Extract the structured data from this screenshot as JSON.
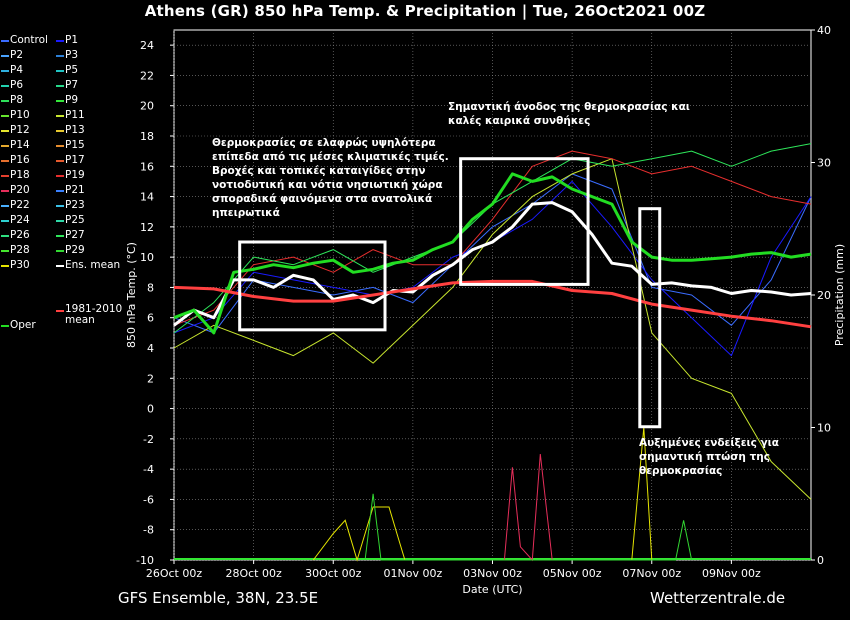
{
  "title": "Athens  (GR)  850 hPa Temp. & Precipitation | Tue, 26Oct2021 00Z",
  "footer": {
    "left": "GFS Ensemble, 38N, 23.5E",
    "right": "Wetterzentrale.de"
  },
  "annotations": {
    "note1": [
      "Θερμοκρασίες σε ελαφρώς υψηλότερα",
      "επίπεδα από τις μέσες κλιματικές τιμές.",
      "Βροχές και τοπικές καταιγίδες στην",
      "νοτιοδυτική και νότια νησιωτική χώρα",
      "σποραδικά φαινόμενα στα ανατολικά",
      "ηπειρωτικά"
    ],
    "note2": [
      "Σημαντική άνοδος της θερμοκρασίας και",
      "καλές καιρικά συνθήκες"
    ],
    "note3": [
      "Αυξημένες ενδείξεις για",
      "σημαντική πτώση της",
      "θερμοκρασίας"
    ]
  },
  "chart_data": {
    "type": "line",
    "title": "Athens  (GR)  850 hPa Temp. & Precipitation | Tue, 26Oct2021 00Z",
    "xlabel": "Date (UTC)",
    "ylabel": "850 hPa Temp. (°C)",
    "y2label": "Precipitation (mm)",
    "ylim": [
      -10,
      25
    ],
    "y2lim": [
      0,
      40
    ],
    "yticks": [
      -10,
      -8,
      -6,
      -4,
      -2,
      0,
      2,
      4,
      6,
      8,
      10,
      12,
      14,
      16,
      18,
      20,
      22,
      24
    ],
    "y2ticks": [
      0,
      10,
      20,
      30,
      40
    ],
    "xlim": [
      0,
      16
    ],
    "xtick_labels": [
      "26Oct 00z",
      "28Oct 00z",
      "30Oct 00z",
      "01Nov 00z",
      "03Nov 00z",
      "05Nov 00z",
      "07Nov 00z",
      "09Nov 00z"
    ],
    "xtick_positions": [
      0,
      2,
      4,
      6,
      8,
      10,
      12,
      14
    ],
    "grid": true,
    "legend_position": "left",
    "legend": [
      {
        "name": "Control",
        "color": "#3a6cff"
      },
      {
        "name": "P1",
        "color": "#1a1aff"
      },
      {
        "name": "P2",
        "color": "#4aa3ff"
      },
      {
        "name": "P3",
        "color": "#2c7fd6"
      },
      {
        "name": "P4",
        "color": "#2fb0e0"
      },
      {
        "name": "P5",
        "color": "#20c4c4"
      },
      {
        "name": "P6",
        "color": "#22d3b0"
      },
      {
        "name": "P7",
        "color": "#25d88a"
      },
      {
        "name": "P8",
        "color": "#2ee05a"
      },
      {
        "name": "P9",
        "color": "#33e63a"
      },
      {
        "name": "P10",
        "color": "#66e62e"
      },
      {
        "name": "P11",
        "color": "#c8e62e"
      },
      {
        "name": "P12",
        "color": "#e6e62e"
      },
      {
        "name": "P13",
        "color": "#e6c82e"
      },
      {
        "name": "P14",
        "color": "#e6aa2e"
      },
      {
        "name": "P15",
        "color": "#e68c2e"
      },
      {
        "name": "P16",
        "color": "#e6702e"
      },
      {
        "name": "P17",
        "color": "#e65a2e"
      },
      {
        "name": "P18",
        "color": "#e6402e"
      },
      {
        "name": "P19",
        "color": "#e62e2e"
      },
      {
        "name": "P20",
        "color": "#e62e5a"
      },
      {
        "name": "P21",
        "color": "#3a80ff"
      },
      {
        "name": "P22",
        "color": "#4ab0ff"
      },
      {
        "name": "P23",
        "color": "#3ac0e6"
      },
      {
        "name": "P24",
        "color": "#2ed0d0"
      },
      {
        "name": "P25",
        "color": "#2ed8a8"
      },
      {
        "name": "P26",
        "color": "#2ee080"
      },
      {
        "name": "P27",
        "color": "#2ee65a"
      },
      {
        "name": "P28",
        "color": "#46e62e"
      },
      {
        "name": "P29",
        "color": "#32d832"
      },
      {
        "name": "P30",
        "color": "#e6e600"
      },
      {
        "name": "Ens. mean",
        "color": "#ffffff"
      },
      {
        "name": "Oper",
        "color": "#22dd22"
      },
      {
        "name": "1981-2010 mean",
        "color": "#ff4040"
      }
    ],
    "series": [
      {
        "name": "Ens. mean",
        "color": "#ffffff",
        "x": [
          0,
          0.5,
          1,
          1.5,
          2,
          2.5,
          3,
          3.5,
          4,
          4.5,
          5,
          5.5,
          6,
          6.5,
          7,
          7.5,
          8,
          8.5,
          9,
          9.5,
          10,
          10.5,
          11,
          11.5,
          12,
          12.5,
          13,
          13.5,
          14,
          14.5,
          15,
          15.5,
          16
        ],
        "y": [
          5.5,
          6.5,
          6.0,
          8.5,
          8.5,
          8.0,
          8.8,
          8.5,
          7.2,
          7.5,
          7.0,
          7.8,
          7.7,
          8.8,
          9.5,
          10.5,
          11.0,
          12.0,
          13.5,
          13.6,
          13.0,
          11.5,
          9.6,
          9.4,
          8.2,
          8.3,
          8.1,
          8.0,
          7.6,
          7.8,
          7.7,
          7.5,
          7.6
        ]
      },
      {
        "name": "Oper",
        "color": "#22dd22",
        "x": [
          0,
          0.5,
          1,
          1.5,
          2,
          2.5,
          3,
          3.5,
          4,
          4.5,
          5,
          5.5,
          6,
          6.5,
          7,
          7.5,
          8,
          8.5,
          9,
          9.5,
          10,
          10.5,
          11,
          11.5,
          12,
          12.5,
          13,
          13.5,
          14,
          14.5,
          15,
          15.5,
          16
        ],
        "y": [
          6.0,
          6.5,
          5.0,
          9.0,
          9.2,
          9.5,
          9.3,
          9.6,
          9.8,
          9.0,
          9.2,
          9.6,
          9.8,
          10.5,
          11.0,
          12.5,
          13.5,
          15.5,
          15.0,
          15.3,
          14.5,
          14.0,
          13.5,
          11.0,
          10.0,
          9.8,
          9.8,
          9.9,
          10.0,
          10.2,
          10.3,
          10.0,
          10.2
        ]
      },
      {
        "name": "1981-2010 mean",
        "color": "#ff4040",
        "x": [
          0,
          1,
          2,
          3,
          4,
          5,
          6,
          7,
          8,
          9,
          10,
          11,
          12,
          13,
          14,
          15,
          16
        ],
        "y": [
          8.0,
          7.9,
          7.4,
          7.1,
          7.1,
          7.5,
          7.9,
          8.3,
          8.4,
          8.4,
          7.8,
          7.6,
          6.9,
          6.5,
          6.1,
          5.8,
          5.4
        ]
      },
      {
        "name": "Control",
        "color": "#3a6cff",
        "x": [
          0,
          1,
          2,
          3,
          4,
          5,
          6,
          7,
          8,
          9,
          10,
          11,
          12,
          13,
          14,
          15,
          16
        ],
        "y": [
          6.0,
          5.0,
          8.5,
          8.0,
          7.5,
          8.0,
          7.0,
          9.5,
          12.0,
          13.5,
          15.5,
          14.5,
          8.0,
          7.5,
          5.5,
          8.5,
          14.0
        ]
      },
      {
        "name": "P1",
        "color": "#1a1aff",
        "x": [
          0,
          1,
          2,
          3,
          4,
          5,
          6,
          7,
          8,
          9,
          10,
          11,
          12,
          13,
          14,
          15,
          16
        ],
        "y": [
          5.0,
          6.0,
          9.0,
          8.5,
          8.0,
          7.5,
          8.0,
          10.0,
          11.0,
          12.5,
          15.0,
          12.0,
          8.5,
          6.0,
          3.5,
          10.0,
          14.0
        ]
      },
      {
        "name": "P11",
        "color": "#c8e62e",
        "x": [
          0,
          1,
          2,
          3,
          4,
          5,
          6,
          7,
          8,
          9,
          10,
          11,
          12,
          13,
          14,
          15,
          16
        ],
        "y": [
          4.0,
          5.5,
          4.5,
          3.5,
          5.0,
          3.0,
          5.5,
          8.0,
          11.5,
          14.0,
          15.5,
          16.5,
          5.0,
          2.0,
          1.0,
          -3.5,
          -6.0
        ]
      },
      {
        "name": "P19",
        "color": "#e62e2e",
        "x": [
          0,
          1,
          2,
          3,
          4,
          5,
          6,
          7,
          8,
          9,
          10,
          11,
          12,
          13,
          14,
          15,
          16
        ],
        "y": [
          5.5,
          6.5,
          9.5,
          10.0,
          9.0,
          10.5,
          9.5,
          9.5,
          12.5,
          16.0,
          17.0,
          16.5,
          15.5,
          16.0,
          15.0,
          14.0,
          13.5
        ]
      },
      {
        "name": "P27",
        "color": "#2ee65a",
        "x": [
          0,
          1,
          2,
          3,
          4,
          5,
          6,
          7,
          8,
          9,
          10,
          11,
          12,
          13,
          14,
          15,
          16
        ],
        "y": [
          5.0,
          7.0,
          10.0,
          9.5,
          10.5,
          9.0,
          10.0,
          11.0,
          13.5,
          15.0,
          16.5,
          16.0,
          16.5,
          17.0,
          16.0,
          17.0,
          17.5
        ]
      }
    ],
    "precipitation": [
      {
        "name": "P30",
        "color": "#e6e600",
        "x": [
          3.5,
          4,
          4.3,
          4.6,
          5,
          5.4,
          5.6,
          5.8,
          6,
          11.5,
          11.8,
          12
        ],
        "y": [
          0,
          2,
          3,
          0,
          4,
          4,
          2,
          0,
          0,
          0,
          10,
          0
        ]
      },
      {
        "name": "P20",
        "color": "#e62e5a",
        "x": [
          8.3,
          8.5,
          8.7,
          9,
          9.2,
          9.5
        ],
        "y": [
          0,
          7,
          1,
          0,
          8,
          0
        ]
      },
      {
        "name": "P29",
        "color": "#32d832",
        "x": [
          4.8,
          5,
          5.2,
          12.6,
          12.8,
          13
        ],
        "y": [
          0,
          5,
          0,
          0,
          3,
          0
        ]
      }
    ]
  }
}
